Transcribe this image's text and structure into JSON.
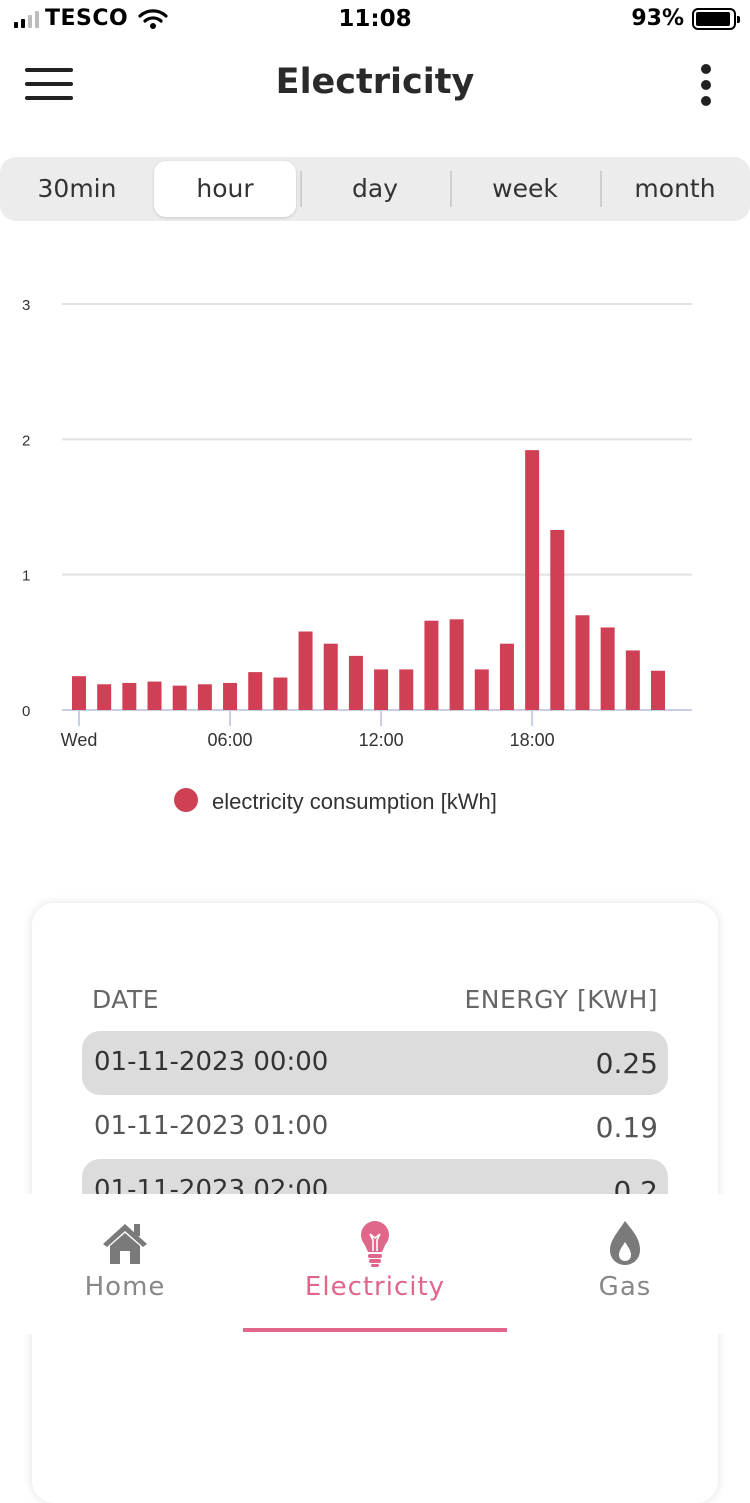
{
  "status_bar": {
    "carrier": "TESCO",
    "time": "11:08",
    "battery_percent": "93%",
    "signal_bars": 2,
    "battery_level": 0.93
  },
  "app_bar": {
    "title": "Electricity",
    "menu_icon": "hamburger-icon",
    "more_icon": "more-vertical-icon"
  },
  "intervals": {
    "selected": "hour",
    "options": [
      "30min",
      "hour",
      "day",
      "week",
      "month"
    ]
  },
  "chart_data": {
    "type": "bar",
    "title": "",
    "xlabel": "",
    "ylabel": "",
    "ylim": [
      0,
      3
    ],
    "yticks": [
      "0",
      "1",
      "2",
      "3"
    ],
    "grid": true,
    "legend_position": "bottom",
    "categories": [
      "00:00",
      "01:00",
      "02:00",
      "03:00",
      "04:00",
      "05:00",
      "06:00",
      "07:00",
      "08:00",
      "09:00",
      "10:00",
      "11:00",
      "12:00",
      "13:00",
      "14:00",
      "15:00",
      "16:00",
      "17:00",
      "18:00",
      "19:00",
      "20:00",
      "21:00",
      "22:00",
      "23:00"
    ],
    "xtick_labels": [
      {
        "hour": 0,
        "label": "Wed"
      },
      {
        "hour": 6,
        "label": "06:00"
      },
      {
        "hour": 12,
        "label": "12:00"
      },
      {
        "hour": 18,
        "label": "18:00"
      }
    ],
    "series": [
      {
        "name": "electricity consumption [kWh]",
        "color": "#cf4055",
        "values": [
          0.25,
          0.19,
          0.2,
          0.21,
          0.18,
          0.19,
          0.2,
          0.28,
          0.24,
          0.58,
          0.49,
          0.4,
          0.3,
          0.3,
          0.66,
          0.67,
          0.3,
          0.49,
          1.92,
          1.33,
          0.7,
          0.61,
          0.44,
          0.29
        ]
      }
    ]
  },
  "table": {
    "headers": {
      "date": "DATE",
      "energy": "ENERGY [KWH]"
    },
    "rows": [
      {
        "date": "01-11-2023 00:00",
        "value": "0.25"
      },
      {
        "date": "01-11-2023 01:00",
        "value": "0.19"
      },
      {
        "date": "01-11-2023 02:00",
        "value": "0.2"
      }
    ]
  },
  "tab_bar": {
    "active": "Electricity",
    "tabs": [
      {
        "label": "Home",
        "icon": "home-icon"
      },
      {
        "label": "Electricity",
        "icon": "lightbulb-icon"
      },
      {
        "label": "Gas",
        "icon": "flame-icon"
      }
    ],
    "active_color": "#e0668a"
  }
}
